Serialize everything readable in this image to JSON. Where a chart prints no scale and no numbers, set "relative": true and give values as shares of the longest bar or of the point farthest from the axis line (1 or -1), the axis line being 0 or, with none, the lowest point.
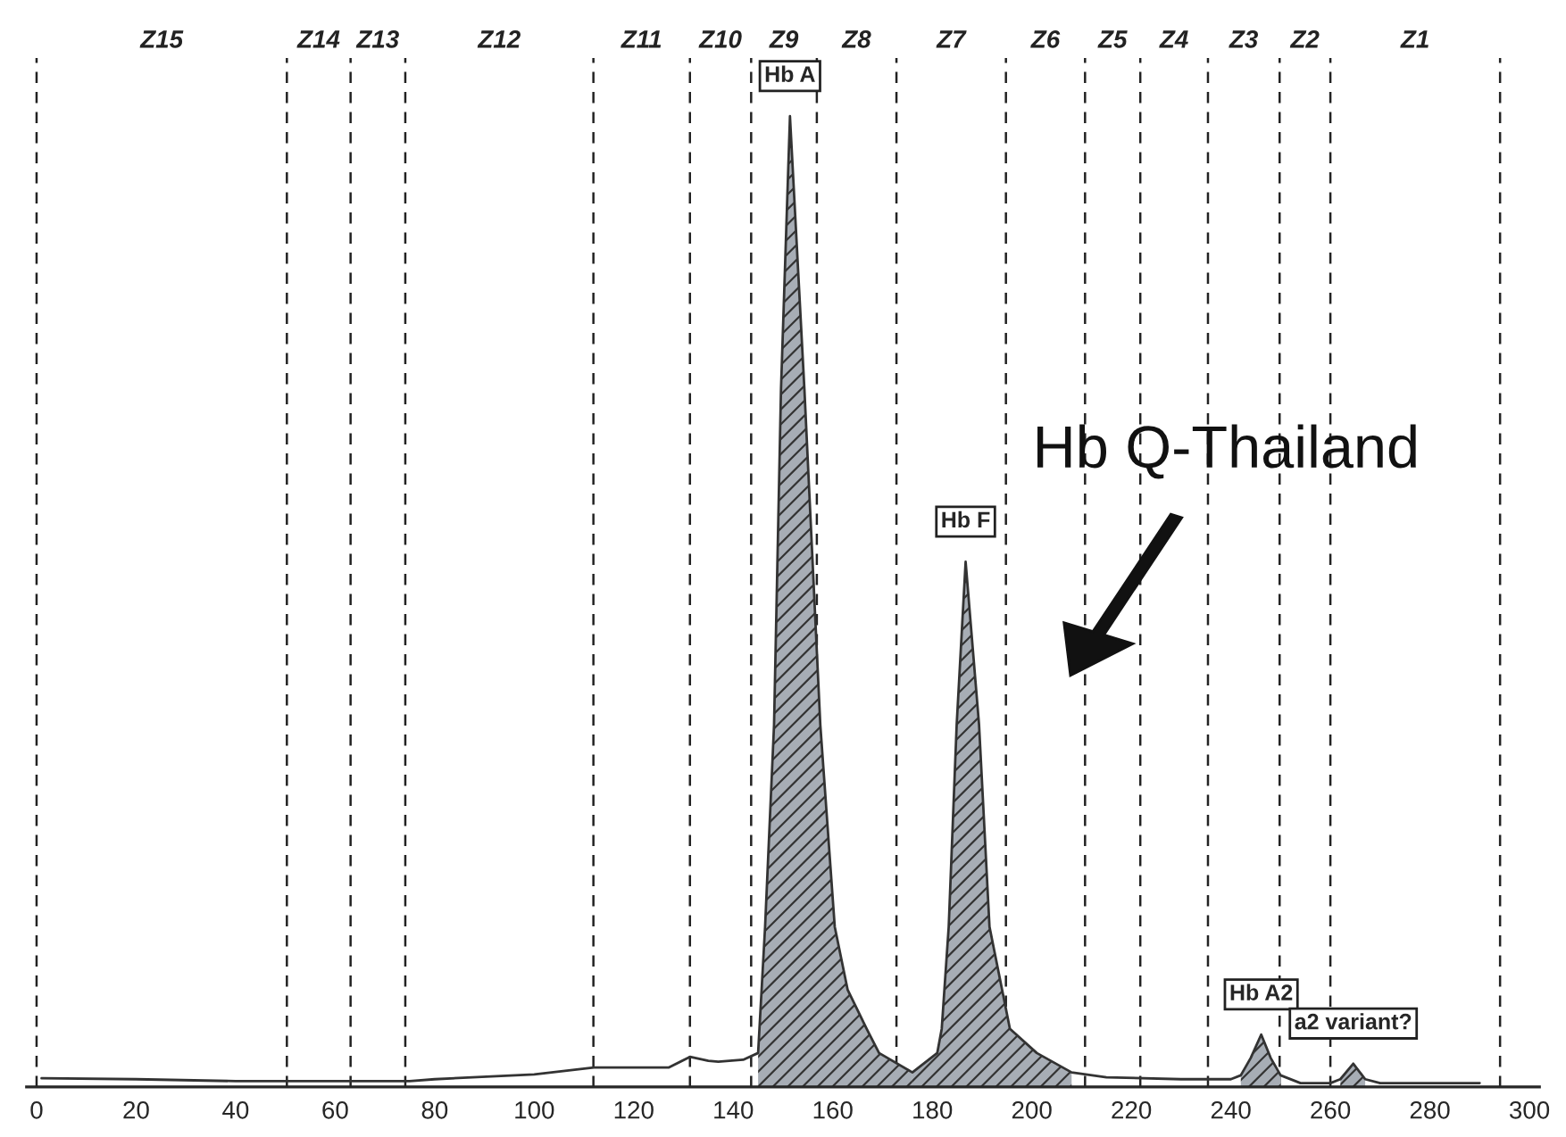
{
  "chart_data": {
    "type": "line",
    "relative": true,
    "tick_labels": "x",
    "xlim": [
      -2,
      302
    ],
    "xticks": [
      0,
      20,
      40,
      60,
      80,
      100,
      120,
      140,
      160,
      180,
      200,
      220,
      240,
      260,
      280,
      300
    ],
    "series": [
      {
        "type": "area",
        "color": "#a7adb5",
        "x": [
          145,
          146.4,
          148.2,
          149.6,
          151.4,
          154.3,
          157.5,
          160.4,
          163,
          166.8,
          169.3,
          176
        ],
        "values": [
          0.035,
          0.165,
          0.373,
          0.719,
          1.0,
          0.719,
          0.373,
          0.165,
          0.1,
          0.06,
          0.035,
          0.015
        ]
      },
      {
        "type": "area",
        "color": "#a7adb5",
        "x": [
          176,
          181,
          181.9,
          183.3,
          184.9,
          186.7,
          189.4,
          191.5,
          195.6,
          201,
          208
        ],
        "values": [
          0.015,
          0.035,
          0.06,
          0.165,
          0.373,
          0.541,
          0.373,
          0.165,
          0.06,
          0.035,
          0.015
        ]
      },
      {
        "type": "area",
        "color": "#a7adb5",
        "x": [
          242,
          244,
          246.1,
          248,
          250
        ],
        "values": [
          0.012,
          0.03,
          0.054,
          0.03,
          0.012
        ]
      },
      {
        "type": "area",
        "color": "#a7adb5",
        "x": [
          262,
          264.6,
          267
        ],
        "values": [
          0.008,
          0.024,
          0.008
        ]
      },
      {
        "color": "#333333",
        "x": [
          1,
          20,
          40,
          60,
          75,
          80,
          100,
          112,
          127,
          131.3,
          135,
          137,
          142,
          145,
          146.4,
          148.2,
          149.6,
          151.4,
          154.3,
          157.5,
          160.4,
          163,
          166.8,
          169.3,
          176,
          181,
          181.9,
          183.3,
          184.9,
          186.7,
          189.4,
          191.5,
          195.6,
          201,
          208,
          215,
          230,
          240,
          242,
          244,
          246.1,
          248,
          250,
          254,
          260,
          262,
          264.6,
          267,
          270,
          290
        ],
        "values": [
          0.009,
          0.008,
          0.006,
          0.006,
          0.006,
          0.008,
          0.013,
          0.02,
          0.02,
          0.031,
          0.027,
          0.026,
          0.028,
          0.035,
          0.165,
          0.373,
          0.719,
          1.0,
          0.719,
          0.373,
          0.165,
          0.1,
          0.06,
          0.035,
          0.015,
          0.035,
          0.06,
          0.165,
          0.373,
          0.541,
          0.373,
          0.165,
          0.06,
          0.035,
          0.015,
          0.01,
          0.008,
          0.008,
          0.012,
          0.03,
          0.054,
          0.03,
          0.012,
          0.004,
          0.004,
          0.008,
          0.024,
          0.008,
          0.004,
          0.004
        ]
      }
    ],
    "ref_lines": [
      {
        "axis": "x",
        "value": 0,
        "line_style": "dashed"
      },
      {
        "axis": "x",
        "value": 50.3,
        "line_style": "dashed"
      },
      {
        "axis": "x",
        "value": 63.1,
        "line_style": "dashed"
      },
      {
        "axis": "x",
        "value": 74.1,
        "line_style": "dashed"
      },
      {
        "axis": "x",
        "value": 111.9,
        "line_style": "dashed"
      },
      {
        "axis": "x",
        "value": 131.3,
        "line_style": "dashed"
      },
      {
        "axis": "x",
        "value": 143.6,
        "line_style": "dashed"
      },
      {
        "axis": "x",
        "value": 156.8,
        "line_style": "dashed"
      },
      {
        "axis": "x",
        "value": 172.8,
        "line_style": "dashed"
      },
      {
        "axis": "x",
        "value": 194.8,
        "line_style": "dashed"
      },
      {
        "axis": "x",
        "value": 210.7,
        "line_style": "dashed"
      },
      {
        "axis": "x",
        "value": 221.8,
        "line_style": "dashed"
      },
      {
        "axis": "x",
        "value": 235.4,
        "line_style": "dashed"
      },
      {
        "axis": "x",
        "value": 249.8,
        "line_style": "dashed"
      },
      {
        "axis": "x",
        "value": 260,
        "line_style": "dashed"
      },
      {
        "axis": "x",
        "value": 294.1,
        "line_style": "dashed"
      }
    ],
    "annotations": [
      "Z15",
      "Z14",
      "Z13",
      "Z12",
      "Z11",
      "Z10",
      "Z9",
      "Z8",
      "Z7",
      "Z6",
      "Z5",
      "Z4",
      "Z3",
      "Z2",
      "Z1",
      {
        "text": "Hb A",
        "x": 151.4,
        "y": 1.0
      },
      {
        "text": "Hb F",
        "x": 186.7,
        "y": 0.541
      },
      {
        "text": "Hb A2",
        "x": 246.1,
        "y": 0.054
      },
      {
        "text": "a2 variant?",
        "x": 264.6,
        "y": 0.024
      },
      "Hb Q-Thailand"
    ]
  }
}
